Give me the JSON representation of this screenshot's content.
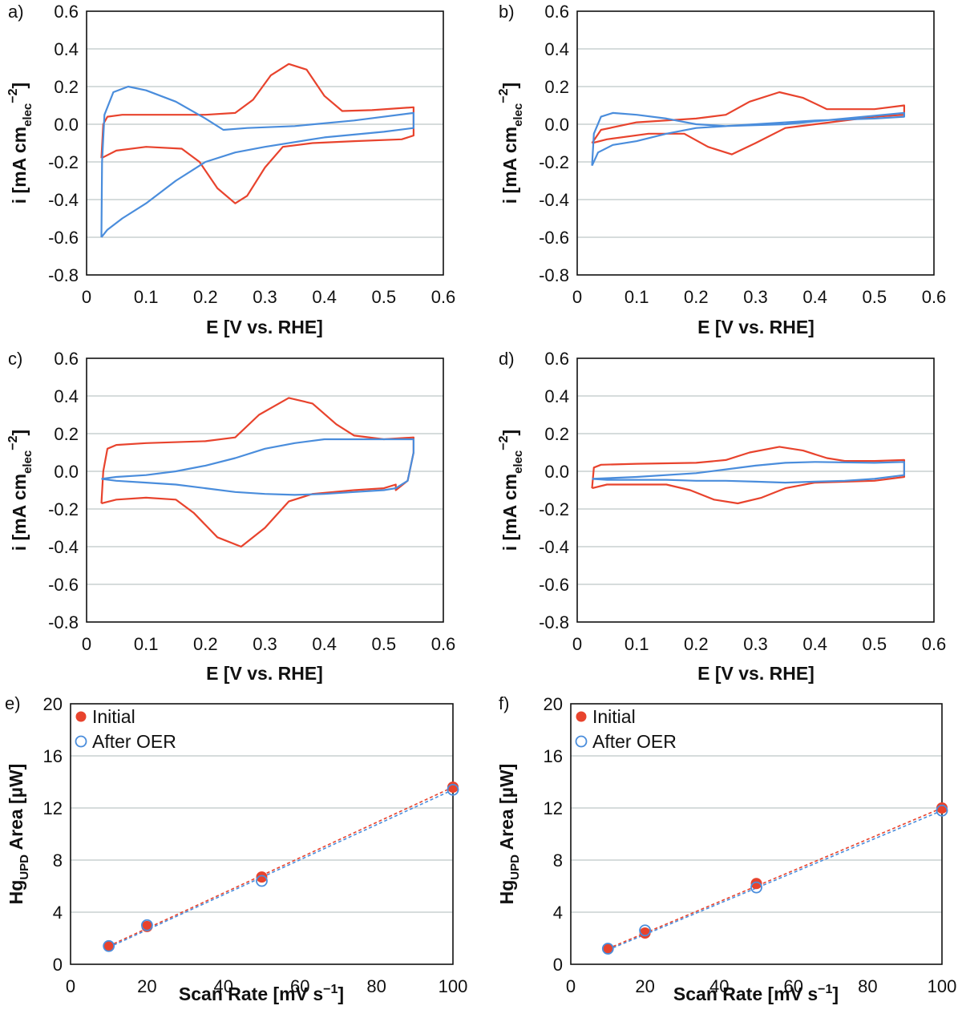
{
  "chart_data": [
    {
      "panel": "a)",
      "type": "line",
      "xlabel": "E [V vs. RHE]",
      "ylabel_parts": {
        "main": "i [mA cm",
        "sub": "elec",
        "sup": "−2",
        "close": "]"
      },
      "xlim": [
        0,
        0.6
      ],
      "ylim": [
        -0.8,
        0.6
      ],
      "xticks": [
        "0",
        "0.1",
        "0.2",
        "0.3",
        "0.4",
        "0.5",
        "0.6"
      ],
      "yticks": [
        "-0.8",
        "-0.6",
        "-0.4",
        "-0.2",
        "0.0",
        "0.2",
        "0.4",
        "0.6"
      ],
      "grid": "horizontal",
      "series": [
        {
          "color": "#e8432d",
          "points": [
            [
              0.025,
              -0.18
            ],
            [
              0.028,
              0.0
            ],
            [
              0.035,
              0.04
            ],
            [
              0.06,
              0.05
            ],
            [
              0.1,
              0.05
            ],
            [
              0.2,
              0.05
            ],
            [
              0.25,
              0.06
            ],
            [
              0.28,
              0.13
            ],
            [
              0.31,
              0.26
            ],
            [
              0.34,
              0.32
            ],
            [
              0.37,
              0.29
            ],
            [
              0.4,
              0.15
            ],
            [
              0.43,
              0.07
            ],
            [
              0.48,
              0.075
            ],
            [
              0.55,
              0.09
            ],
            [
              0.55,
              -0.06
            ],
            [
              0.53,
              -0.08
            ],
            [
              0.45,
              -0.09
            ],
            [
              0.38,
              -0.1
            ],
            [
              0.33,
              -0.12
            ],
            [
              0.3,
              -0.23
            ],
            [
              0.27,
              -0.38
            ],
            [
              0.25,
              -0.42
            ],
            [
              0.22,
              -0.34
            ],
            [
              0.19,
              -0.2
            ],
            [
              0.16,
              -0.13
            ],
            [
              0.1,
              -0.12
            ],
            [
              0.05,
              -0.14
            ],
            [
              0.025,
              -0.18
            ]
          ]
        },
        {
          "color": "#4a8ddc",
          "points": [
            [
              0.025,
              -0.6
            ],
            [
              0.026,
              -0.2
            ],
            [
              0.03,
              0.05
            ],
            [
              0.045,
              0.17
            ],
            [
              0.07,
              0.2
            ],
            [
              0.1,
              0.18
            ],
            [
              0.15,
              0.12
            ],
            [
              0.2,
              0.03
            ],
            [
              0.23,
              -0.03
            ],
            [
              0.27,
              -0.02
            ],
            [
              0.35,
              -0.01
            ],
            [
              0.45,
              0.02
            ],
            [
              0.55,
              0.06
            ],
            [
              0.55,
              -0.02
            ],
            [
              0.5,
              -0.04
            ],
            [
              0.4,
              -0.07
            ],
            [
              0.3,
              -0.12
            ],
            [
              0.25,
              -0.15
            ],
            [
              0.2,
              -0.2
            ],
            [
              0.15,
              -0.3
            ],
            [
              0.1,
              -0.42
            ],
            [
              0.06,
              -0.5
            ],
            [
              0.035,
              -0.56
            ],
            [
              0.025,
              -0.6
            ]
          ]
        }
      ]
    },
    {
      "panel": "b)",
      "type": "line",
      "xlabel": "E [V vs. RHE]",
      "ylabel_parts": {
        "main": "i [mA cm",
        "sub": "elec",
        "sup": "−2",
        "close": "]"
      },
      "xlim": [
        0,
        0.6
      ],
      "ylim": [
        -0.8,
        0.6
      ],
      "xticks": [
        "0",
        "0.1",
        "0.2",
        "0.3",
        "0.4",
        "0.5",
        "0.6"
      ],
      "yticks": [
        "-0.8",
        "-0.6",
        "-0.4",
        "-0.2",
        "0.0",
        "0.2",
        "0.4",
        "0.6"
      ],
      "grid": "horizontal",
      "series": [
        {
          "color": "#e8432d",
          "points": [
            [
              0.025,
              -0.1
            ],
            [
              0.04,
              -0.03
            ],
            [
              0.1,
              0.01
            ],
            [
              0.2,
              0.03
            ],
            [
              0.25,
              0.05
            ],
            [
              0.29,
              0.12
            ],
            [
              0.34,
              0.17
            ],
            [
              0.38,
              0.14
            ],
            [
              0.42,
              0.08
            ],
            [
              0.5,
              0.08
            ],
            [
              0.55,
              0.1
            ],
            [
              0.55,
              0.05
            ],
            [
              0.5,
              0.04
            ],
            [
              0.4,
              0.0
            ],
            [
              0.35,
              -0.02
            ],
            [
              0.3,
              -0.1
            ],
            [
              0.26,
              -0.16
            ],
            [
              0.22,
              -0.12
            ],
            [
              0.18,
              -0.05
            ],
            [
              0.12,
              -0.05
            ],
            [
              0.05,
              -0.08
            ],
            [
              0.025,
              -0.1
            ]
          ]
        },
        {
          "color": "#4a8ddc",
          "points": [
            [
              0.025,
              -0.22
            ],
            [
              0.028,
              -0.05
            ],
            [
              0.04,
              0.04
            ],
            [
              0.06,
              0.06
            ],
            [
              0.1,
              0.05
            ],
            [
              0.15,
              0.03
            ],
            [
              0.2,
              0.0
            ],
            [
              0.25,
              -0.01
            ],
            [
              0.35,
              0.0
            ],
            [
              0.45,
              0.03
            ],
            [
              0.55,
              0.06
            ],
            [
              0.55,
              0.04
            ],
            [
              0.5,
              0.03
            ],
            [
              0.4,
              0.02
            ],
            [
              0.3,
              0.0
            ],
            [
              0.2,
              -0.02
            ],
            [
              0.15,
              -0.05
            ],
            [
              0.1,
              -0.09
            ],
            [
              0.06,
              -0.11
            ],
            [
              0.035,
              -0.15
            ],
            [
              0.025,
              -0.22
            ]
          ]
        }
      ]
    },
    {
      "panel": "c)",
      "type": "line",
      "xlabel": "E [V vs. RHE]",
      "ylabel_parts": {
        "main": "i [mA cm",
        "sub": "elec",
        "sup": "−2",
        "close": "]"
      },
      "xlim": [
        0,
        0.6
      ],
      "ylim": [
        -0.8,
        0.6
      ],
      "xticks": [
        "0",
        "0.1",
        "0.2",
        "0.3",
        "0.4",
        "0.5",
        "0.6"
      ],
      "yticks": [
        "-0.8",
        "-0.6",
        "-0.4",
        "-0.2",
        "0.0",
        "0.2",
        "0.4",
        "0.6"
      ],
      "grid": "horizontal",
      "series": [
        {
          "color": "#e8432d",
          "points": [
            [
              0.025,
              -0.17
            ],
            [
              0.028,
              0.0
            ],
            [
              0.035,
              0.12
            ],
            [
              0.05,
              0.14
            ],
            [
              0.1,
              0.15
            ],
            [
              0.2,
              0.16
            ],
            [
              0.25,
              0.18
            ],
            [
              0.29,
              0.3
            ],
            [
              0.34,
              0.39
            ],
            [
              0.38,
              0.36
            ],
            [
              0.42,
              0.25
            ],
            [
              0.45,
              0.19
            ],
            [
              0.5,
              0.17
            ],
            [
              0.55,
              0.18
            ],
            [
              0.55,
              0.1
            ],
            [
              0.54,
              -0.05
            ],
            [
              0.52,
              -0.1
            ],
            [
              0.52,
              -0.07
            ],
            [
              0.5,
              -0.09
            ],
            [
              0.45,
              -0.1
            ],
            [
              0.38,
              -0.12
            ],
            [
              0.34,
              -0.16
            ],
            [
              0.3,
              -0.3
            ],
            [
              0.26,
              -0.4
            ],
            [
              0.22,
              -0.35
            ],
            [
              0.18,
              -0.22
            ],
            [
              0.15,
              -0.15
            ],
            [
              0.1,
              -0.14
            ],
            [
              0.05,
              -0.15
            ],
            [
              0.025,
              -0.17
            ]
          ]
        },
        {
          "color": "#4a8ddc",
          "points": [
            [
              0.025,
              -0.04
            ],
            [
              0.05,
              -0.03
            ],
            [
              0.1,
              -0.02
            ],
            [
              0.15,
              0.0
            ],
            [
              0.2,
              0.03
            ],
            [
              0.25,
              0.07
            ],
            [
              0.3,
              0.12
            ],
            [
              0.35,
              0.15
            ],
            [
              0.4,
              0.17
            ],
            [
              0.5,
              0.17
            ],
            [
              0.55,
              0.17
            ],
            [
              0.55,
              0.1
            ],
            [
              0.54,
              -0.05
            ],
            [
              0.52,
              -0.09
            ],
            [
              0.5,
              -0.1
            ],
            [
              0.45,
              -0.11
            ],
            [
              0.4,
              -0.12
            ],
            [
              0.35,
              -0.125
            ],
            [
              0.3,
              -0.12
            ],
            [
              0.25,
              -0.11
            ],
            [
              0.2,
              -0.09
            ],
            [
              0.15,
              -0.07
            ],
            [
              0.1,
              -0.06
            ],
            [
              0.05,
              -0.05
            ],
            [
              0.025,
              -0.04
            ]
          ]
        }
      ]
    },
    {
      "panel": "d)",
      "type": "line",
      "xlabel": "E [V vs. RHE]",
      "ylabel_parts": {
        "main": "i [mA cm",
        "sub": "elec",
        "sup": "−2",
        "close": "]"
      },
      "xlim": [
        0,
        0.6
      ],
      "ylim": [
        -0.8,
        0.6
      ],
      "xticks": [
        "0",
        "0.1",
        "0.2",
        "0.3",
        "0.4",
        "0.5",
        "0.6"
      ],
      "yticks": [
        "-0.8",
        "-0.6",
        "-0.4",
        "-0.2",
        "0.0",
        "0.2",
        "0.4",
        "0.6"
      ],
      "grid": "horizontal",
      "series": [
        {
          "color": "#e8432d",
          "points": [
            [
              0.025,
              -0.09
            ],
            [
              0.028,
              0.02
            ],
            [
              0.04,
              0.035
            ],
            [
              0.1,
              0.04
            ],
            [
              0.2,
              0.045
            ],
            [
              0.25,
              0.06
            ],
            [
              0.29,
              0.1
            ],
            [
              0.34,
              0.13
            ],
            [
              0.38,
              0.11
            ],
            [
              0.42,
              0.07
            ],
            [
              0.45,
              0.055
            ],
            [
              0.5,
              0.055
            ],
            [
              0.55,
              0.06
            ],
            [
              0.55,
              -0.03
            ],
            [
              0.5,
              -0.05
            ],
            [
              0.4,
              -0.06
            ],
            [
              0.35,
              -0.09
            ],
            [
              0.31,
              -0.14
            ],
            [
              0.27,
              -0.17
            ],
            [
              0.23,
              -0.15
            ],
            [
              0.19,
              -0.1
            ],
            [
              0.15,
              -0.07
            ],
            [
              0.1,
              -0.07
            ],
            [
              0.05,
              -0.07
            ],
            [
              0.025,
              -0.09
            ]
          ]
        },
        {
          "color": "#4a8ddc",
          "points": [
            [
              0.025,
              -0.04
            ],
            [
              0.1,
              -0.03
            ],
            [
              0.2,
              -0.01
            ],
            [
              0.25,
              0.01
            ],
            [
              0.3,
              0.03
            ],
            [
              0.35,
              0.045
            ],
            [
              0.4,
              0.05
            ],
            [
              0.5,
              0.045
            ],
            [
              0.55,
              0.05
            ],
            [
              0.55,
              -0.02
            ],
            [
              0.5,
              -0.04
            ],
            [
              0.45,
              -0.05
            ],
            [
              0.4,
              -0.055
            ],
            [
              0.35,
              -0.06
            ],
            [
              0.3,
              -0.055
            ],
            [
              0.25,
              -0.05
            ],
            [
              0.2,
              -0.05
            ],
            [
              0.15,
              -0.045
            ],
            [
              0.1,
              -0.045
            ],
            [
              0.05,
              -0.045
            ],
            [
              0.025,
              -0.04
            ]
          ]
        }
      ]
    },
    {
      "panel": "e)",
      "type": "scatter",
      "xlabel_parts": {
        "main": "Scan Rate [mV s",
        "sup": "−1",
        "close": "]"
      },
      "ylabel_parts": {
        "main": "Hg",
        "sub": "UPD",
        "close": " Area [µW]"
      },
      "xlim": [
        0,
        100
      ],
      "ylim": [
        0,
        20
      ],
      "xticks": [
        "0",
        "20",
        "40",
        "60",
        "80",
        "100"
      ],
      "yticks": [
        "0",
        "4",
        "8",
        "12",
        "16",
        "20"
      ],
      "grid": "horizontal",
      "legend_position": "top-left",
      "series": [
        {
          "name": "Initial",
          "color": "#e8432d",
          "marker": "filled",
          "x": [
            10,
            20,
            50,
            100
          ],
          "y": [
            1.4,
            2.9,
            6.7,
            13.6
          ],
          "fit": [
            [
              10,
              1.4
            ],
            [
              100,
              13.6
            ]
          ]
        },
        {
          "name": "After OER",
          "color": "#4a8ddc",
          "marker": "open",
          "x": [
            10,
            20,
            50,
            100
          ],
          "y": [
            1.4,
            3.0,
            6.4,
            13.4
          ],
          "fit": [
            [
              10,
              1.3
            ],
            [
              100,
              13.4
            ]
          ]
        }
      ]
    },
    {
      "panel": "f)",
      "type": "scatter",
      "xlabel_parts": {
        "main": "Scan Rate [mV s",
        "sup": "−1",
        "close": "]"
      },
      "ylabel_parts": {
        "main": "Hg",
        "sub": "UPD",
        "close": " Area [µW]"
      },
      "xlim": [
        0,
        100
      ],
      "ylim": [
        0,
        20
      ],
      "xticks": [
        "0",
        "20",
        "40",
        "60",
        "80",
        "100"
      ],
      "yticks": [
        "0",
        "4",
        "8",
        "12",
        "16",
        "20"
      ],
      "grid": "horizontal",
      "legend_position": "top-left",
      "series": [
        {
          "name": "Initial",
          "color": "#e8432d",
          "marker": "filled",
          "x": [
            10,
            20,
            50,
            100
          ],
          "y": [
            1.2,
            2.4,
            6.2,
            12.0
          ],
          "fit": [
            [
              10,
              1.2
            ],
            [
              100,
              12.0
            ]
          ]
        },
        {
          "name": "After OER",
          "color": "#4a8ddc",
          "marker": "open",
          "x": [
            10,
            20,
            50,
            100
          ],
          "y": [
            1.2,
            2.6,
            5.9,
            11.8
          ],
          "fit": [
            [
              10,
              1.1
            ],
            [
              100,
              11.8
            ]
          ]
        }
      ]
    }
  ]
}
